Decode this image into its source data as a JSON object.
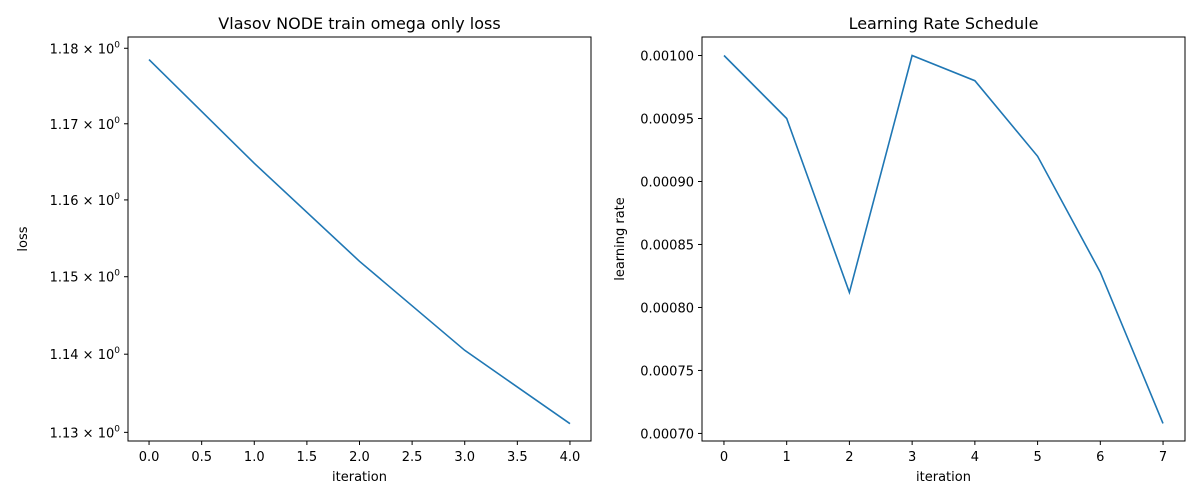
{
  "chart_data": [
    {
      "type": "line",
      "title": "Vlasov NODE train omega only loss",
      "xlabel": "iteration",
      "ylabel": "loss",
      "yscale": "log",
      "xlim": [
        -0.2,
        4.2
      ],
      "ylim": [
        1.1289,
        1.1815
      ],
      "grid": false,
      "xticks": [
        0.0,
        0.5,
        1.0,
        1.5,
        2.0,
        2.5,
        3.0,
        3.5,
        4.0
      ],
      "xtick_labels": [
        "0.0",
        "0.5",
        "1.0",
        "1.5",
        "2.0",
        "2.5",
        "3.0",
        "3.5",
        "4.0"
      ],
      "yticks": [
        1.13,
        1.14,
        1.15,
        1.16,
        1.17,
        1.18
      ],
      "ytick_labels": [
        {
          "base": "1.13 × 10",
          "exp": "0"
        },
        {
          "base": "1.14 × 10",
          "exp": "0"
        },
        {
          "base": "1.15 × 10",
          "exp": "0"
        },
        {
          "base": "1.16 × 10",
          "exp": "0"
        },
        {
          "base": "1.17 × 10",
          "exp": "0"
        },
        {
          "base": "1.18 × 10",
          "exp": "0"
        }
      ],
      "series": [
        {
          "color": "#1f77b4",
          "x": [
            0,
            1,
            2,
            3,
            4
          ],
          "y": [
            1.1785,
            1.1648,
            1.152,
            1.1405,
            1.1311
          ]
        }
      ]
    },
    {
      "type": "line",
      "title": "Learning Rate Schedule",
      "xlabel": "iteration",
      "ylabel": "learning rate",
      "yscale": "linear",
      "xlim": [
        -0.35,
        7.35
      ],
      "ylim": [
        0.000694,
        0.0010147
      ],
      "grid": false,
      "xticks": [
        0,
        1,
        2,
        3,
        4,
        5,
        6,
        7
      ],
      "xtick_labels": [
        "0",
        "1",
        "2",
        "3",
        "4",
        "5",
        "6",
        "7"
      ],
      "yticks": [
        0.0007,
        0.00075,
        0.0008,
        0.00085,
        0.0009,
        0.00095,
        0.001
      ],
      "ytick_labels": [
        "0.00070",
        "0.00075",
        "0.00080",
        "0.00085",
        "0.00090",
        "0.00095",
        "0.00100"
      ],
      "series": [
        {
          "color": "#1f77b4",
          "x": [
            0,
            1,
            2,
            3,
            4,
            5,
            6,
            7
          ],
          "y": [
            0.001,
            0.00095,
            0.000812,
            0.001,
            0.00098,
            0.00092,
            0.000828,
            0.000708
          ]
        }
      ]
    }
  ]
}
